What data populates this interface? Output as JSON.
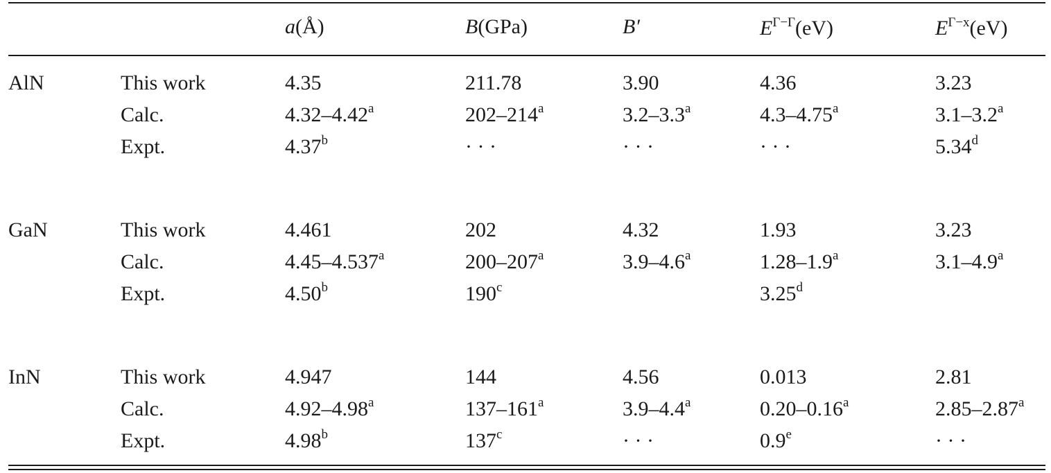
{
  "header": {
    "a_var": "a",
    "a_unit": "(Å)",
    "B_var": "B",
    "B_unit": "(GPa)",
    "Bp_var": "B′",
    "Egg_var": "E",
    "Egg_sup": "Γ−Γ",
    "Egg_unit": "(eV)",
    "Egx_var": "E",
    "Egx_sup": "Γ−x",
    "Egx_unit": "(eV)"
  },
  "groups": [
    {
      "material": "AlN",
      "rows": [
        {
          "label": "This work",
          "a": "4.35",
          "a_sup": "",
          "B": "211.78",
          "B_sup": "",
          "Bp": "3.90",
          "Bp_sup": "",
          "Egg": "4.36",
          "Egg_sup": "",
          "Egx": "3.23",
          "Egx_sup": ""
        },
        {
          "label": "Calc.",
          "a": "4.32–4.42",
          "a_sup": "a",
          "B": "202–214",
          "B_sup": "a",
          "Bp": "3.2–3.3",
          "Bp_sup": "a",
          "Egg": "4.3–4.75",
          "Egg_sup": "a",
          "Egx": "3.1–3.2",
          "Egx_sup": "a"
        },
        {
          "label": "Expt.",
          "a": "4.37",
          "a_sup": "b",
          "B": "· · ·",
          "B_sup": "",
          "Bp": "· · ·",
          "Bp_sup": "",
          "Egg": "· · ·",
          "Egg_sup": "",
          "Egx": "5.34",
          "Egx_sup": "d"
        }
      ]
    },
    {
      "material": "GaN",
      "rows": [
        {
          "label": "This work",
          "a": "4.461",
          "a_sup": "",
          "B": "202",
          "B_sup": "",
          "Bp": "4.32",
          "Bp_sup": "",
          "Egg": "1.93",
          "Egg_sup": "",
          "Egx": "3.23",
          "Egx_sup": ""
        },
        {
          "label": "Calc.",
          "a": "4.45–4.537",
          "a_sup": "a",
          "B": "200–207",
          "B_sup": "a",
          "Bp": "3.9–4.6",
          "Bp_sup": "a",
          "Egg": "1.28–1.9",
          "Egg_sup": "a",
          "Egx": "3.1–4.9",
          "Egx_sup": "a"
        },
        {
          "label": "Expt.",
          "a": "4.50",
          "a_sup": "b",
          "B": "190",
          "B_sup": "c",
          "Bp": "",
          "Bp_sup": "",
          "Egg": "3.25",
          "Egg_sup": "d",
          "Egx": "",
          "Egx_sup": ""
        }
      ]
    },
    {
      "material": "InN",
      "rows": [
        {
          "label": "This work",
          "a": "4.947",
          "a_sup": "",
          "B": "144",
          "B_sup": "",
          "Bp": "4.56",
          "Bp_sup": "",
          "Egg": "0.013",
          "Egg_sup": "",
          "Egx": "2.81",
          "Egx_sup": ""
        },
        {
          "label": "Calc.",
          "a": "4.92–4.98",
          "a_sup": "a",
          "B": "137–161",
          "B_sup": "a",
          "Bp": "3.9–4.4",
          "Bp_sup": "a",
          "Egg": "0.20–0.16",
          "Egg_sup": "a",
          "Egx": "2.85–2.87",
          "Egx_sup": "a"
        },
        {
          "label": "Expt.",
          "a": "4.98",
          "a_sup": "b",
          "B": "137",
          "B_sup": "c",
          "Bp": "· · ·",
          "Bp_sup": "",
          "Egg": "0.9",
          "Egg_sup": "e",
          "Egx": "· · ·",
          "Egx_sup": ""
        }
      ]
    }
  ]
}
